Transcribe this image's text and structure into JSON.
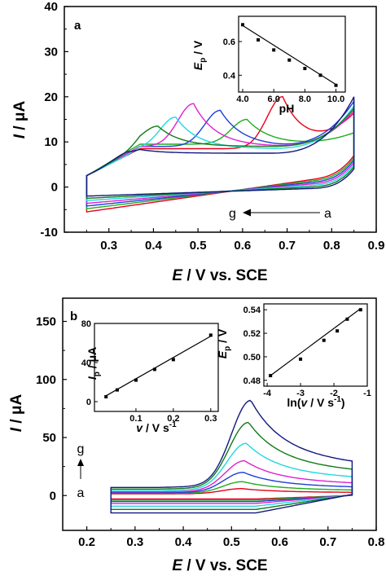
{
  "chart_data": [
    {
      "type": "line",
      "panel_label": "a",
      "xlabel_prefix": "E",
      "xlabel_suffix": " / V vs. SCE",
      "ylabel_prefix": "I",
      "ylabel_suffix": " / μA",
      "xlim": [
        0.2,
        0.9
      ],
      "ylim": [
        -10,
        40
      ],
      "xticks": [
        "0.3",
        "0.4",
        "0.5",
        "0.6",
        "0.7",
        "0.8",
        "0.9"
      ],
      "yticks": [
        "-10",
        "0",
        "10",
        "20",
        "30",
        "40"
      ],
      "annotation_left": "g",
      "annotation_right": "a",
      "series": [
        {
          "color": "#e8001c",
          "peak_x": 0.69,
          "peak_y": 20.0,
          "base_y": 8.5,
          "rise_y": 16.0,
          "low_start": -5.5,
          "low_end": 3.0
        },
        {
          "color": "#1fae1f",
          "peak_x": 0.61,
          "peak_y": 15.0,
          "base_y": 9.5,
          "rise_y": 12.0,
          "low_start": -4.8,
          "low_end": 2.5
        },
        {
          "color": "#1f3fd6",
          "peak_x": 0.55,
          "peak_y": 17.0,
          "base_y": 9.0,
          "rise_y": 19.0,
          "low_start": -4.2,
          "low_end": 2.0
        },
        {
          "color": "#e020d0",
          "peak_x": 0.49,
          "peak_y": 18.5,
          "base_y": 9.0,
          "rise_y": 17.0,
          "low_start": -3.6,
          "low_end": 1.5
        },
        {
          "color": "#20d8e0",
          "peak_x": 0.45,
          "peak_y": 15.5,
          "base_y": 8.5,
          "rise_y": 18.0,
          "low_start": -3.0,
          "low_end": 1.0
        },
        {
          "color": "#127a1a",
          "peak_x": 0.41,
          "peak_y": 13.5,
          "base_y": 9.0,
          "rise_y": 17.5,
          "low_start": -2.5,
          "low_end": 0.5
        },
        {
          "color": "#101a80",
          "peak_x": 0.34,
          "peak_y": 9.0,
          "base_y": 7.5,
          "rise_y": 20.0,
          "low_start": -2.0,
          "low_end": 0.0
        }
      ],
      "inset": {
        "xlabel": "pH",
        "ylabel_prefix": "E",
        "ylabel_sub": "p",
        "ylabel_suffix": " / V",
        "xlim": [
          4,
          10.6
        ],
        "ylim": [
          0.3,
          0.75
        ],
        "xticks": [
          "4.0",
          "6.0",
          "8.0",
          "10.0"
        ],
        "yticks": [
          "0.4",
          "0.6"
        ],
        "x": [
          4,
          5,
          6,
          7,
          8,
          9,
          10
        ],
        "y": [
          0.7,
          0.61,
          0.55,
          0.49,
          0.44,
          0.4,
          0.34
        ],
        "fit": [
          [
            4,
            0.695
          ],
          [
            10,
            0.345
          ]
        ]
      }
    },
    {
      "type": "line",
      "panel_label": "b",
      "xlabel_prefix": "E",
      "xlabel_suffix": " / V vs. SCE",
      "ylabel_prefix": "I",
      "ylabel_suffix": " / μA",
      "xlim": [
        0.15,
        0.8
      ],
      "ylim": [
        -30,
        170
      ],
      "xticks": [
        "0.2",
        "0.3",
        "0.4",
        "0.5",
        "0.6",
        "0.7",
        "0.8"
      ],
      "yticks": [
        "0",
        "50",
        "100",
        "150"
      ],
      "annotation_top": "g",
      "annotation_bottom": "a",
      "series": [
        {
          "color": "#e8001c",
          "peak": 6
        },
        {
          "color": "#1fae1f",
          "peak": 12
        },
        {
          "color": "#1f3fd6",
          "peak": 20
        },
        {
          "color": "#e020d0",
          "peak": 30
        },
        {
          "color": "#20d8e0",
          "peak": 45
        },
        {
          "color": "#127a1a",
          "peak": 63
        },
        {
          "color": "#101a80",
          "peak": 82
        }
      ],
      "inset_left": {
        "xlabel_prefix": "v",
        "xlabel_suffix": " / V s",
        "xlabel_sup": "-1",
        "ylabel_prefix": "I",
        "ylabel_sub": "p",
        "ylabel_suffix": " / μA",
        "xlim": [
          0,
          0.32
        ],
        "ylim": [
          0,
          80
        ],
        "xticks": [
          "0.1",
          "0.2",
          "0.3"
        ],
        "yticks": [
          "0",
          "40",
          "80"
        ],
        "x": [
          0.02,
          0.05,
          0.1,
          0.15,
          0.2,
          0.3
        ],
        "y": [
          5,
          12,
          22,
          33,
          43,
          68
        ],
        "fit": [
          [
            0.02,
            6
          ],
          [
            0.3,
            67
          ]
        ]
      },
      "inset_right": {
        "xlabel_prefix": "ln(",
        "xlabel_v": "v",
        "xlabel_suffix": " / V s",
        "xlabel_sup": "-1",
        "xlabel_close": ")",
        "ylabel_prefix": "E",
        "ylabel_sub": "p",
        "ylabel_suffix": " / V",
        "xlim": [
          -4.1,
          -1.0
        ],
        "ylim": [
          0.475,
          0.545
        ],
        "xticks": [
          "-4",
          "-3",
          "-2",
          "-1"
        ],
        "yticks": [
          "0.48",
          "0.50",
          "0.52",
          "0.54"
        ],
        "x": [
          -3.9,
          -3.0,
          -2.3,
          -1.9,
          -1.6,
          -1.2
        ],
        "y": [
          0.484,
          0.498,
          0.514,
          0.522,
          0.532,
          0.54
        ],
        "fit": [
          [
            -3.95,
            0.483
          ],
          [
            -1.2,
            0.541
          ]
        ]
      }
    }
  ]
}
